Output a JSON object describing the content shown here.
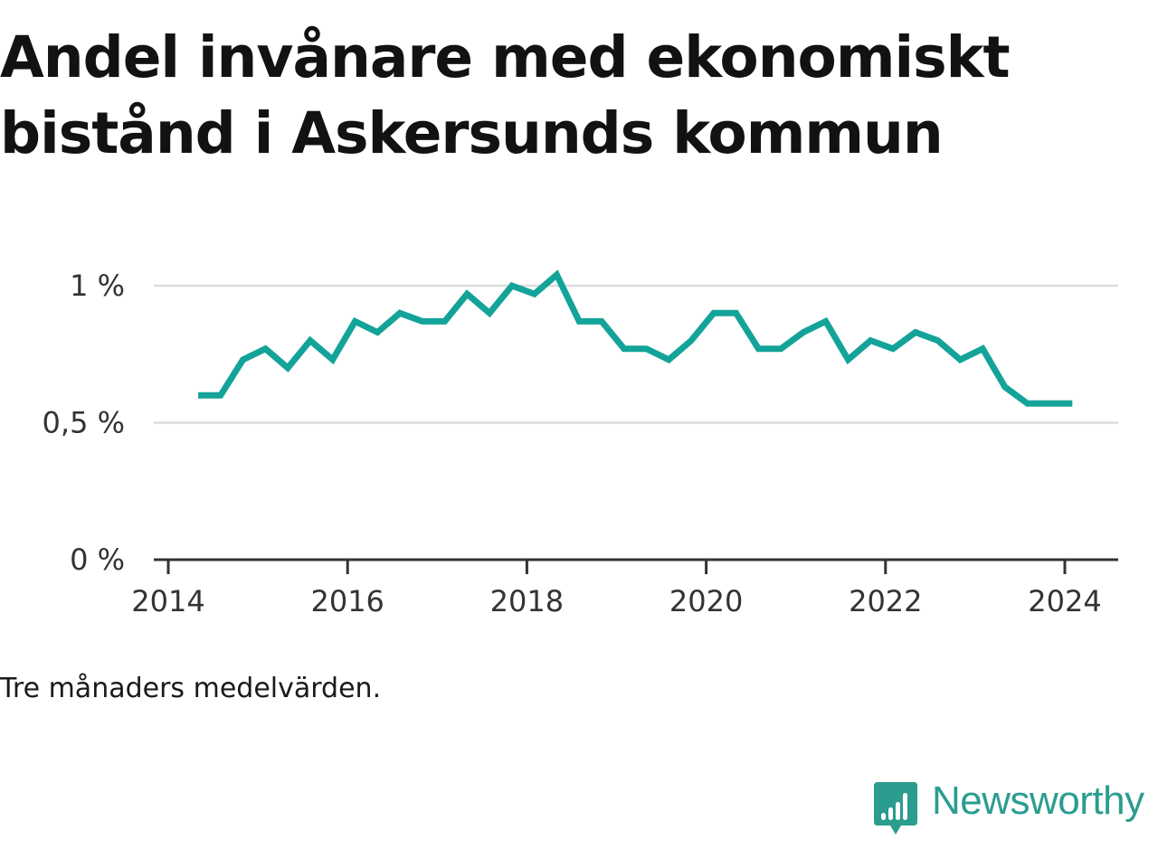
{
  "title": "Andel invånare med ekonomiskt bistånd i Askersunds kommun",
  "note": "Tre månaders medelvärden.",
  "brand": {
    "name": "Newsworthy",
    "icon": "bar-chart-speech-bubble-icon",
    "color": "#2a9d8f"
  },
  "chart_data": {
    "type": "line",
    "series": [
      {
        "color": "#13a399",
        "x": [
          "2014-05",
          "2014-08",
          "2014-11",
          "2015-02",
          "2015-05",
          "2015-08",
          "2015-11",
          "2016-02",
          "2016-05",
          "2016-08",
          "2016-11",
          "2017-02",
          "2017-05",
          "2017-08",
          "2017-11",
          "2018-02",
          "2018-05",
          "2018-08",
          "2018-11",
          "2019-02",
          "2019-05",
          "2019-08",
          "2019-11",
          "2020-02",
          "2020-05",
          "2020-08",
          "2020-11",
          "2021-02",
          "2021-05",
          "2021-08",
          "2021-11",
          "2022-02",
          "2022-05",
          "2022-08",
          "2022-11",
          "2023-02",
          "2023-05",
          "2023-08",
          "2023-11",
          "2024-02"
        ],
        "values": [
          0.6,
          0.6,
          0.73,
          0.77,
          0.7,
          0.8,
          0.73,
          0.87,
          0.83,
          0.9,
          0.87,
          0.87,
          0.97,
          0.9,
          1.0,
          0.97,
          1.04,
          0.87,
          0.87,
          0.77,
          0.77,
          0.73,
          0.8,
          0.9,
          0.9,
          0.77,
          0.77,
          0.83,
          0.87,
          0.73,
          0.8,
          0.77,
          0.83,
          0.8,
          0.73,
          0.77,
          0.63,
          0.57,
          0.57,
          0.57
        ]
      }
    ],
    "y_ticks": [
      {
        "value": 0,
        "label": "0 %"
      },
      {
        "value": 0.5,
        "label": "0,5 %"
      },
      {
        "value": 1,
        "label": "1 %"
      }
    ],
    "x_ticks": [
      {
        "value": "2014-01",
        "label": "2014"
      },
      {
        "value": "2016-01",
        "label": "2016"
      },
      {
        "value": "2018-01",
        "label": "2018"
      },
      {
        "value": "2020-01",
        "label": "2020"
      },
      {
        "value": "2022-01",
        "label": "2022"
      },
      {
        "value": "2024-01",
        "label": "2024"
      }
    ],
    "ylim": [
      0,
      1
    ],
    "grid": true,
    "legend": false
  }
}
